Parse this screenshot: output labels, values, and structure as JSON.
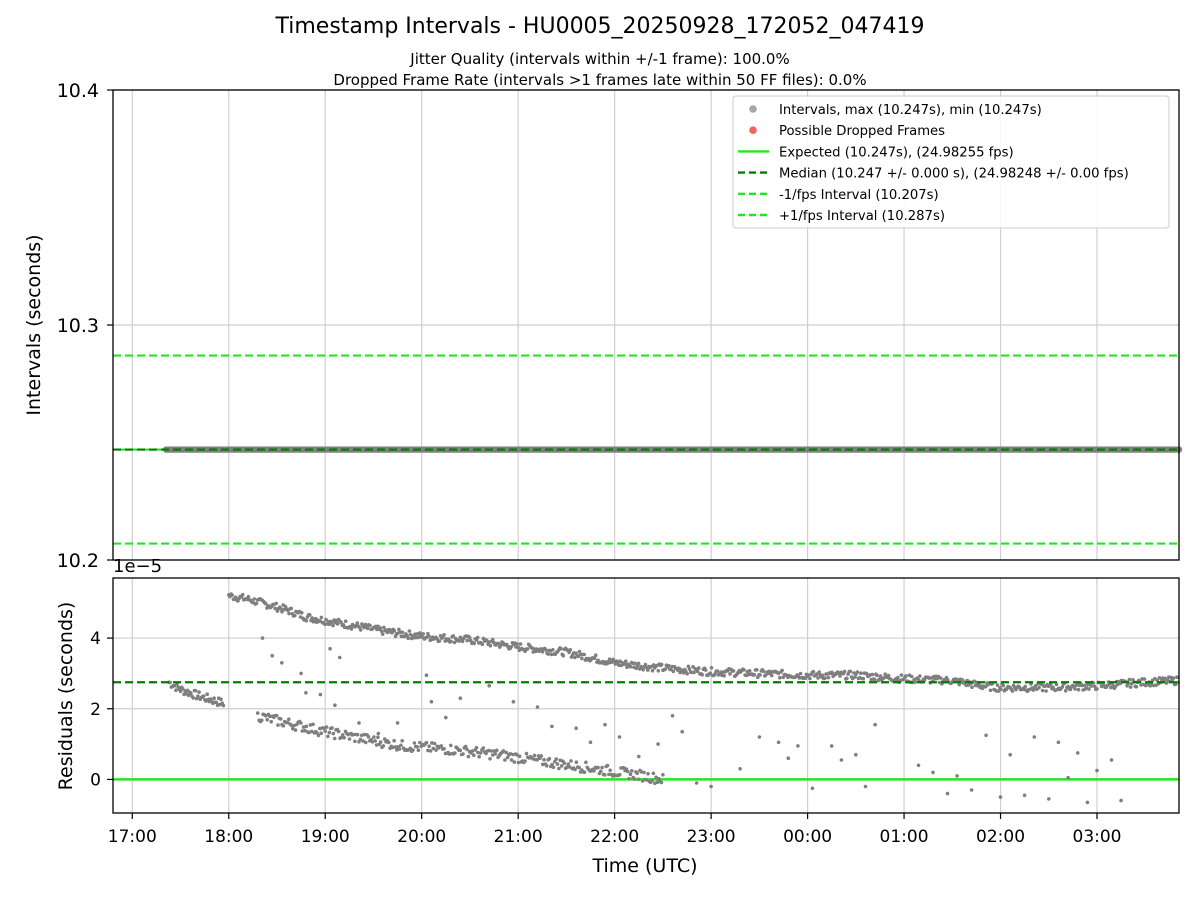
{
  "chart_data": [
    {
      "type": "scatter",
      "title": "Timestamp Intervals - HU0005_20250928_172052_047419",
      "subtitle_1": "Jitter Quality (intervals within +/-1 frame): 100.0%",
      "subtitle_2": "Dropped Frame Rate (intervals >1 frames late within 50 FF files): 0.0%",
      "ylabel": "Intervals (seconds)",
      "ylim": [
        10.2,
        10.4
      ],
      "yticks": [
        10.2,
        10.3,
        10.4
      ],
      "ytick_labels": [
        "10.2",
        "10.3",
        "10.4"
      ],
      "x_hours_range": [
        -0.2,
        10.85
      ],
      "grid": true,
      "legend_position": "top-right",
      "legend": [
        {
          "label": "Intervals, max (10.247s), min (10.247s)",
          "kind": "dot",
          "color": "#a6a6a6"
        },
        {
          "label": "Possible Dropped Frames",
          "kind": "dot",
          "color": "#f26464"
        },
        {
          "label": "Expected (10.247s), (24.98255 fps)",
          "kind": "solid",
          "color": "#22e622"
        },
        {
          "label": "Median (10.247 +/- 0.000 s), (24.98248 +/- 0.00 fps)",
          "kind": "dashed",
          "color": "#007d00"
        },
        {
          "label": "-1/fps Interval (10.207s)",
          "kind": "dashed",
          "color": "#22e622"
        },
        {
          "label": "+1/fps Interval (10.287s)",
          "kind": "dashed",
          "color": "#22e622"
        }
      ],
      "lines": {
        "expected": 10.247,
        "median": 10.247,
        "minus_fps": 10.207,
        "plus_fps": 10.287
      },
      "intervals_series": {
        "x_hours_start": 0.35,
        "x_hours_end": 10.85,
        "y": 10.247
      }
    },
    {
      "type": "scatter",
      "xlabel": "Time (UTC)",
      "ylabel": "Residuals (seconds)",
      "offset_label": "1e−5",
      "ylim": [
        -0.95,
        5.7
      ],
      "yticks": [
        0,
        2,
        4
      ],
      "ytick_labels": [
        "0",
        "2",
        "4"
      ],
      "xticks_hours": [
        0,
        1,
        2,
        3,
        4,
        5,
        6,
        7,
        8,
        9,
        10
      ],
      "xtick_labels": [
        "17:00",
        "18:00",
        "19:00",
        "20:00",
        "21:00",
        "22:00",
        "23:00",
        "00:00",
        "01:00",
        "02:00",
        "03:00"
      ],
      "x_hours_range": [
        -0.2,
        10.85
      ],
      "expected_line": 0,
      "median_line": 2.75,
      "upper_trend": [
        [
          0.38,
          2.75
        ],
        [
          0.5,
          2.55
        ],
        [
          0.7,
          2.35
        ],
        [
          0.95,
          2.15
        ],
        [
          1.0,
          5.2
        ],
        [
          1.2,
          5.1
        ],
        [
          1.4,
          4.95
        ],
        [
          1.6,
          4.8
        ],
        [
          1.8,
          4.6
        ],
        [
          2.0,
          4.5
        ],
        [
          2.3,
          4.35
        ],
        [
          2.6,
          4.2
        ],
        [
          3.0,
          4.05
        ],
        [
          3.5,
          3.95
        ],
        [
          4.0,
          3.75
        ],
        [
          4.5,
          3.6
        ],
        [
          5.0,
          3.3
        ],
        [
          5.5,
          3.15
        ],
        [
          6.0,
          3.05
        ],
        [
          6.5,
          3.0
        ],
        [
          7.0,
          2.95
        ],
        [
          7.5,
          2.95
        ],
        [
          8.0,
          2.85
        ],
        [
          8.5,
          2.8
        ],
        [
          8.8,
          2.65
        ],
        [
          9.0,
          2.6
        ],
        [
          9.5,
          2.6
        ],
        [
          10.0,
          2.65
        ],
        [
          10.5,
          2.75
        ],
        [
          10.85,
          2.8
        ]
      ],
      "lower_trend": [
        [
          1.3,
          1.8
        ],
        [
          1.6,
          1.6
        ],
        [
          2.0,
          1.35
        ],
        [
          2.4,
          1.15
        ],
        [
          2.8,
          0.95
        ],
        [
          3.3,
          0.85
        ],
        [
          3.8,
          0.7
        ],
        [
          4.3,
          0.5
        ],
        [
          4.8,
          0.3
        ],
        [
          5.3,
          0.1
        ],
        [
          5.5,
          0.0
        ]
      ],
      "outliers": [
        [
          1.35,
          4.0
        ],
        [
          1.45,
          3.5
        ],
        [
          1.55,
          3.3
        ],
        [
          1.75,
          3.0
        ],
        [
          1.8,
          2.45
        ],
        [
          1.95,
          2.4
        ],
        [
          2.05,
          3.7
        ],
        [
          2.15,
          3.45
        ],
        [
          2.1,
          2.1
        ],
        [
          2.35,
          1.6
        ],
        [
          2.55,
          1.3
        ],
        [
          2.75,
          1.6
        ],
        [
          3.05,
          2.95
        ],
        [
          3.1,
          2.2
        ],
        [
          3.25,
          1.75
        ],
        [
          3.4,
          2.3
        ],
        [
          3.7,
          2.65
        ],
        [
          3.95,
          2.2
        ],
        [
          4.2,
          2.05
        ],
        [
          4.35,
          1.5
        ],
        [
          4.6,
          1.45
        ],
        [
          4.75,
          1.05
        ],
        [
          4.9,
          1.55
        ],
        [
          5.05,
          1.2
        ],
        [
          5.25,
          0.65
        ],
        [
          5.45,
          1.0
        ],
        [
          5.6,
          1.8
        ],
        [
          5.7,
          1.35
        ],
        [
          5.85,
          -0.1
        ],
        [
          6.0,
          -0.2
        ],
        [
          6.3,
          0.3
        ],
        [
          6.5,
          1.2
        ],
        [
          6.7,
          1.05
        ],
        [
          6.8,
          0.6
        ],
        [
          6.9,
          0.95
        ],
        [
          7.05,
          -0.25
        ],
        [
          7.25,
          0.95
        ],
        [
          7.35,
          0.55
        ],
        [
          7.5,
          0.7
        ],
        [
          7.6,
          -0.2
        ],
        [
          7.7,
          1.55
        ],
        [
          8.15,
          0.4
        ],
        [
          8.3,
          0.2
        ],
        [
          8.45,
          -0.4
        ],
        [
          8.55,
          0.1
        ],
        [
          8.7,
          -0.3
        ],
        [
          8.85,
          1.25
        ],
        [
          9.0,
          -0.5
        ],
        [
          9.1,
          0.7
        ],
        [
          9.25,
          -0.45
        ],
        [
          9.35,
          1.2
        ],
        [
          9.5,
          -0.55
        ],
        [
          9.6,
          1.05
        ],
        [
          9.7,
          0.05
        ],
        [
          9.8,
          0.75
        ],
        [
          9.9,
          -0.65
        ],
        [
          10.0,
          0.25
        ],
        [
          10.15,
          0.55
        ],
        [
          10.25,
          -0.6
        ]
      ]
    }
  ]
}
